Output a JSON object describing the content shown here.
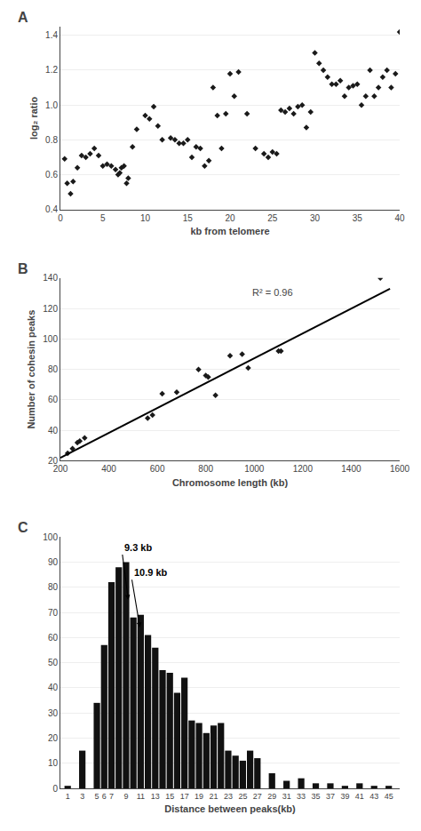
{
  "chart_data": [
    {
      "type": "scatter",
      "title": "A",
      "x_label": "kb from telomere",
      "y_label": "log₂ ratio",
      "x": [
        0.5,
        0.8,
        1.2,
        1.5,
        2.0,
        2.5,
        3.0,
        3.5,
        4.0,
        4.5,
        5.0,
        5.5,
        6.0,
        6.5,
        6.8,
        7.0,
        7.2,
        7.5,
        7.8,
        8.0,
        8.5,
        9.0,
        10.0,
        10.5,
        11.0,
        11.5,
        12.0,
        13.0,
        13.5,
        14.0,
        14.5,
        15.0,
        15.5,
        16.0,
        16.5,
        17.0,
        17.5,
        18.0,
        18.5,
        19.0,
        19.5,
        20.0,
        20.5,
        21.0,
        22.0,
        23.0,
        24.0,
        24.5,
        25.0,
        25.5,
        26.0,
        26.5,
        27.0,
        27.5,
        28.0,
        28.5,
        29.0,
        29.5,
        30.0,
        30.5,
        31.0,
        31.5,
        32.0,
        32.5,
        33.0,
        33.5,
        34.0,
        34.5,
        35.0,
        35.5,
        36.0,
        36.5,
        37.0,
        37.5,
        38.0,
        38.5,
        39.0,
        39.5,
        40.0
      ],
      "values": [
        0.69,
        0.55,
        0.49,
        0.56,
        0.64,
        0.71,
        0.7,
        0.72,
        0.75,
        0.71,
        0.65,
        0.66,
        0.65,
        0.63,
        0.6,
        0.61,
        0.64,
        0.65,
        0.55,
        0.58,
        0.76,
        0.86,
        0.94,
        0.92,
        0.99,
        0.88,
        0.8,
        0.81,
        0.8,
        0.78,
        0.78,
        0.8,
        0.7,
        0.76,
        0.75,
        0.65,
        0.68,
        1.1,
        0.94,
        0.75,
        0.95,
        1.18,
        1.05,
        1.19,
        0.95,
        0.75,
        0.72,
        0.7,
        0.73,
        0.72,
        0.97,
        0.96,
        0.98,
        0.95,
        0.99,
        1.0,
        0.87,
        0.96,
        1.3,
        1.24,
        1.2,
        1.16,
        1.12,
        1.12,
        1.14,
        1.05,
        1.1,
        1.11,
        1.12,
        1.0,
        1.05,
        1.2,
        1.05,
        1.1,
        1.16,
        1.2,
        1.1,
        1.18,
        1.42
      ],
      "color": "#1a1a1a",
      "marker": "diamond",
      "xlim": [
        0,
        40
      ],
      "ylim": [
        0.4,
        1.45
      ],
      "xticks": [
        0,
        5,
        10,
        15,
        20,
        25,
        30,
        35,
        40
      ],
      "yticks": [
        0.4,
        0.6,
        0.8,
        {
          "value": 1.0,
          "label": "1.0"
        },
        1.2,
        1.4
      ],
      "grid": "y"
    },
    {
      "type": "scatter",
      "title": "B",
      "x_label": "Chromosome length (kb)",
      "y_label": "Number of cohesin peaks",
      "series": [
        {
          "type": "scatter",
          "marker": "diamond",
          "color": "#1a1a1a",
          "x": [
            230,
            250,
            270,
            280,
            300,
            560,
            580,
            620,
            680,
            770,
            800,
            810,
            840,
            900,
            950,
            975,
            1100,
            1110,
            1520
          ],
          "values": [
            25,
            28,
            32,
            33,
            35,
            48,
            50,
            64,
            65,
            80,
            76,
            75,
            63,
            89,
            90,
            81,
            92,
            92,
            140
          ]
        },
        {
          "type": "line",
          "color": "#000000",
          "x": [
            200,
            1560
          ],
          "values": [
            22,
            133
          ]
        }
      ],
      "xlim": [
        200,
        1600
      ],
      "ylim": [
        20,
        140
      ],
      "xticks": [
        200,
        400,
        600,
        800,
        1000,
        1200,
        1400,
        1600
      ],
      "yticks": [
        20,
        40,
        60,
        80,
        100,
        120,
        140
      ],
      "annotations": [
        {
          "text": "R² = 0.96"
        }
      ],
      "grid": "y"
    },
    {
      "type": "bar",
      "title": "C",
      "x_label": "Distance between peaks(kb)",
      "x": [
        1,
        3,
        5,
        6,
        7,
        8,
        9,
        10,
        11,
        12,
        13,
        14,
        15,
        16,
        17,
        18,
        19,
        20,
        21,
        22,
        23,
        24,
        25,
        26,
        27,
        29,
        31,
        33,
        35,
        37,
        39,
        41,
        43,
        45
      ],
      "values": [
        1,
        15,
        34,
        57,
        82,
        88,
        90,
        68,
        69,
        61,
        56,
        47,
        46,
        38,
        44,
        27,
        26,
        22,
        25,
        26,
        15,
        13,
        11,
        15,
        12,
        6,
        3,
        4,
        2,
        2,
        1,
        2,
        1,
        1
      ],
      "color": "#111111",
      "xlim": [
        0.0,
        46.5
      ],
      "ylim": [
        0,
        100
      ],
      "xticks": [
        1,
        3,
        5,
        6,
        7,
        9,
        11,
        13,
        15,
        17,
        19,
        21,
        23,
        25,
        27,
        29,
        31,
        33,
        35,
        37,
        39,
        41,
        43,
        45
      ],
      "yticks": [
        0,
        10,
        20,
        30,
        40,
        50,
        60,
        70,
        80,
        90,
        100
      ],
      "annotations": [
        {
          "text": "9.3 kb",
          "x": 9.3,
          "y": 75,
          "text_x": 8.5,
          "text_y": 93
        },
        {
          "text": "10.9 kb",
          "x": 10.9,
          "y": 64,
          "text_x": 9.8,
          "text_y": 83
        }
      ],
      "grid": "y"
    }
  ]
}
